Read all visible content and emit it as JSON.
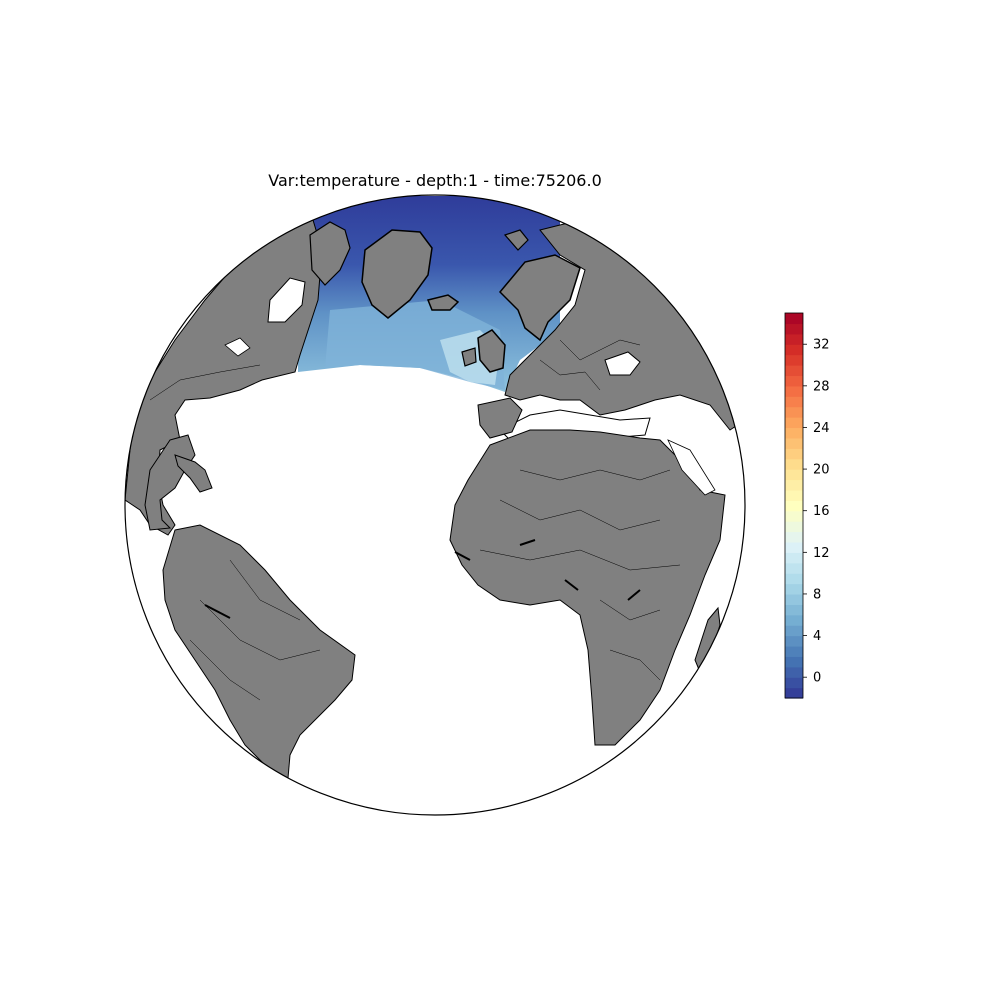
{
  "title": "Var:temperature - depth:1 - time:75206.0",
  "map": {
    "projection": "orthographic",
    "land_color": "#808080",
    "ocean_background": "#ffffff",
    "data_region": "North Atlantic / Nordic Seas / Arctic"
  },
  "colorbar": {
    "cmap": "RdYlBu_r",
    "range": [
      -2,
      35
    ],
    "ticks": [
      "0",
      "4",
      "8",
      "12",
      "16",
      "20",
      "24",
      "28",
      "32"
    ],
    "colors": [
      "#313695",
      "#4575b4",
      "#74add1",
      "#abd9e9",
      "#e0f3f8",
      "#ffffbf",
      "#fee090",
      "#fdae61",
      "#f46d43",
      "#d73027",
      "#a50026"
    ]
  }
}
